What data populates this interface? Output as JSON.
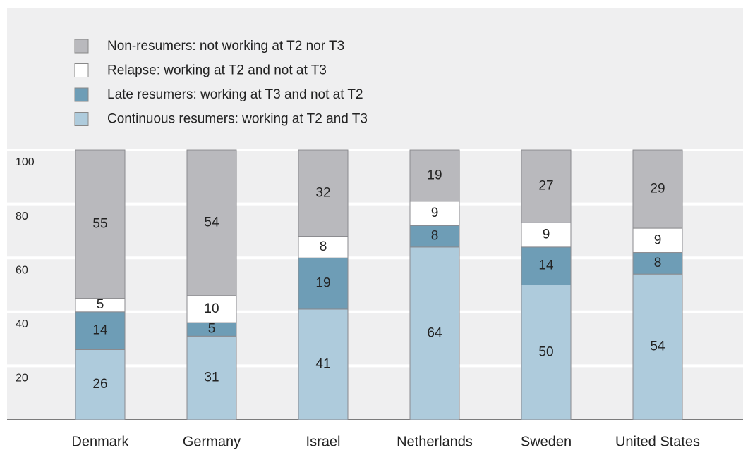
{
  "chart_data": {
    "type": "stacked-bar",
    "categories": [
      "Denmark",
      "Germany",
      "Israel",
      "Netherlands",
      "Sweden",
      "United States"
    ],
    "series": [
      {
        "name": "Continuous resumers: working at T2 and T3",
        "color": "#aecbdc",
        "values": [
          26,
          31,
          41,
          64,
          50,
          54
        ]
      },
      {
        "name": "Late resumers: working at T3 and not at T2",
        "color": "#6e9db6",
        "values": [
          14,
          5,
          19,
          8,
          14,
          8
        ]
      },
      {
        "name": "Relapse: working at T2 and not at T3",
        "color": "#ffffff",
        "values": [
          5,
          10,
          8,
          9,
          9,
          9
        ]
      },
      {
        "name": "Non-resumers: not working at T2 nor T3",
        "color": "#b9b9bd",
        "values": [
          55,
          54,
          32,
          19,
          27,
          29
        ]
      }
    ],
    "ylim": [
      0,
      100
    ],
    "yticks": [
      20,
      40,
      60,
      80,
      100
    ],
    "grid": true
  }
}
